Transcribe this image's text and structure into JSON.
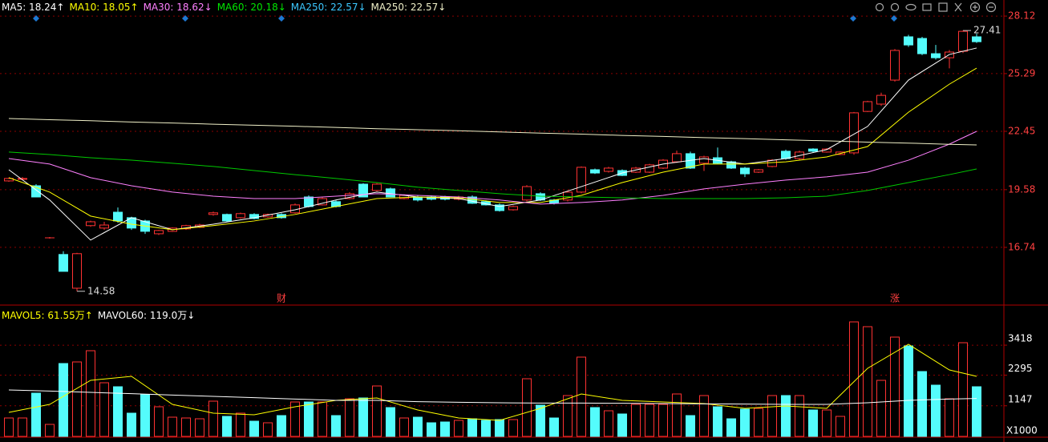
{
  "chart_data": {
    "type": "candlestick",
    "up_color": "#ff3232",
    "down_color": "#54fcfc",
    "grid": true,
    "ylim": [
      13.94,
      28.36
    ],
    "yticks": [
      16.74,
      19.58,
      22.45,
      25.29,
      28.12
    ],
    "legend": [
      {
        "text": "MA5: 18.24↑",
        "color": "#ffffff"
      },
      {
        "text": "MA10: 18.05↑",
        "color": "#ffff00"
      },
      {
        "text": "MA30: 18.62↓",
        "color": "#ff80ff"
      },
      {
        "text": "MA60: 20.18↓",
        "color": "#00e600"
      },
      {
        "text": "MA250: 22.57↓",
        "color": "#3cc8ff"
      },
      {
        "text": "MA250: 22.57↓",
        "color": "#f0f0c8"
      }
    ],
    "candles": [
      [
        20.01,
        20.17,
        19.97,
        20.13
      ],
      [
        20.09,
        20.2,
        20.05,
        20.13
      ],
      [
        19.77,
        19.85,
        19.2,
        19.22
      ],
      [
        17.21,
        17.25,
        17.17,
        17.21
      ],
      [
        16.39,
        16.55,
        15.56,
        15.56
      ],
      [
        14.73,
        16.47,
        14.58,
        16.43
      ],
      [
        17.81,
        18.05,
        17.75,
        18.0
      ],
      [
        17.69,
        18.0,
        17.6,
        17.84
      ],
      [
        18.47,
        18.7,
        17.95,
        18.04
      ],
      [
        18.2,
        18.25,
        17.6,
        17.69
      ],
      [
        18.04,
        18.1,
        17.4,
        17.53
      ],
      [
        17.41,
        17.6,
        17.35,
        17.57
      ],
      [
        17.53,
        17.72,
        17.5,
        17.69
      ],
      [
        17.65,
        17.85,
        17.6,
        17.81
      ],
      [
        17.73,
        17.9,
        17.7,
        17.84
      ],
      [
        18.36,
        18.5,
        18.3,
        18.44
      ],
      [
        18.36,
        18.4,
        18.0,
        18.04
      ],
      [
        18.2,
        18.45,
        18.15,
        18.4
      ],
      [
        18.36,
        18.42,
        18.12,
        18.16
      ],
      [
        18.24,
        18.4,
        18.2,
        18.36
      ],
      [
        18.36,
        18.42,
        18.15,
        18.2
      ],
      [
        18.44,
        18.9,
        18.4,
        18.83
      ],
      [
        19.22,
        19.3,
        18.7,
        18.75
      ],
      [
        18.83,
        19.2,
        18.8,
        19.14
      ],
      [
        18.99,
        19.05,
        18.7,
        18.75
      ],
      [
        19.14,
        19.45,
        19.1,
        19.38
      ],
      [
        19.85,
        19.9,
        19.2,
        19.22
      ],
      [
        19.54,
        19.9,
        19.5,
        19.85
      ],
      [
        19.62,
        19.68,
        19.2,
        19.22
      ],
      [
        19.14,
        19.35,
        19.1,
        19.3
      ],
      [
        19.22,
        19.28,
        19.0,
        19.07
      ],
      [
        19.22,
        19.3,
        19.05,
        19.11
      ],
      [
        19.22,
        19.28,
        19.05,
        19.11
      ],
      [
        19.11,
        19.28,
        19.05,
        19.22
      ],
      [
        19.22,
        19.3,
        18.88,
        18.91
      ],
      [
        18.99,
        19.05,
        18.8,
        18.83
      ],
      [
        18.83,
        18.9,
        18.5,
        18.55
      ],
      [
        18.59,
        18.8,
        18.55,
        18.75
      ],
      [
        19.07,
        19.8,
        19.0,
        19.73
      ],
      [
        19.38,
        19.45,
        19.02,
        19.07
      ],
      [
        19.07,
        19.12,
        18.85,
        18.91
      ],
      [
        19.07,
        19.5,
        19.0,
        19.46
      ],
      [
        19.46,
        20.72,
        19.4,
        20.68
      ],
      [
        20.56,
        20.62,
        20.35,
        20.4
      ],
      [
        20.48,
        20.7,
        20.42,
        20.64
      ],
      [
        20.52,
        20.58,
        20.25,
        20.28
      ],
      [
        20.44,
        20.7,
        20.4,
        20.64
      ],
      [
        20.44,
        20.85,
        20.4,
        20.8
      ],
      [
        20.64,
        21.08,
        20.6,
        21.03
      ],
      [
        20.95,
        21.5,
        20.9,
        21.35
      ],
      [
        21.35,
        21.45,
        20.6,
        20.64
      ],
      [
        20.88,
        21.25,
        20.5,
        21.19
      ],
      [
        21.15,
        21.65,
        20.85,
        20.88
      ],
      [
        20.95,
        21.0,
        20.6,
        20.64
      ],
      [
        20.64,
        20.7,
        20.2,
        20.36
      ],
      [
        20.44,
        20.6,
        20.4,
        20.56
      ],
      [
        20.72,
        21.08,
        20.68,
        21.03
      ],
      [
        21.47,
        21.55,
        21.05,
        21.11
      ],
      [
        21.11,
        21.5,
        21.05,
        21.43
      ],
      [
        21.58,
        21.62,
        21.42,
        21.47
      ],
      [
        21.43,
        21.62,
        21.4,
        21.58
      ],
      [
        21.31,
        21.46,
        21.28,
        21.43
      ],
      [
        21.39,
        23.4,
        21.3,
        23.36
      ],
      [
        23.43,
        23.95,
        23.4,
        23.91
      ],
      [
        23.79,
        24.35,
        23.7,
        24.22
      ],
      [
        24.97,
        26.5,
        24.9,
        26.43
      ],
      [
        27.1,
        27.2,
        26.6,
        26.7
      ],
      [
        27.02,
        27.1,
        26.2,
        26.27
      ],
      [
        26.27,
        26.7,
        25.98,
        26.07
      ],
      [
        26.07,
        26.45,
        25.55,
        26.35
      ],
      [
        26.39,
        27.41,
        26.3,
        27.37
      ],
      [
        27.1,
        27.25,
        26.8,
        26.86
      ]
    ],
    "ma_index": [
      0,
      3,
      6,
      9,
      12,
      15,
      18,
      21,
      24,
      27,
      30,
      33,
      36,
      39,
      42,
      45,
      48,
      51,
      54,
      57,
      60,
      63,
      66,
      69,
      71
    ],
    "series": [
      {
        "color": "#ffffff",
        "values": [
          20.56,
          19.07,
          17.1,
          18.2,
          17.61,
          17.88,
          18.2,
          18.59,
          19.07,
          19.46,
          19.22,
          19.14,
          18.75,
          19.07,
          19.73,
          20.4,
          20.84,
          21.11,
          20.84,
          21.11,
          21.55,
          22.69,
          24.97,
          26.23,
          26.55
        ]
      },
      {
        "color": "#ffff00",
        "values": [
          20.17,
          19.46,
          18.28,
          17.88,
          17.61,
          17.81,
          18.04,
          18.36,
          18.75,
          19.14,
          19.22,
          19.18,
          18.95,
          18.95,
          19.3,
          19.93,
          20.44,
          20.84,
          20.84,
          20.95,
          21.19,
          21.7,
          23.39,
          24.77,
          25.56
        ]
      },
      {
        "color": "#ff80ff",
        "values": [
          21.11,
          20.84,
          20.17,
          19.77,
          19.46,
          19.26,
          19.14,
          19.14,
          19.26,
          19.38,
          19.3,
          19.22,
          19.07,
          18.87,
          18.95,
          19.07,
          19.3,
          19.62,
          19.85,
          20.05,
          20.21,
          20.44,
          21.03,
          21.82,
          22.45
        ]
      },
      {
        "color": "#00c800",
        "values": [
          21.43,
          21.31,
          21.15,
          21.03,
          20.88,
          20.72,
          20.52,
          20.32,
          20.13,
          19.93,
          19.7,
          19.54,
          19.38,
          19.26,
          19.22,
          19.18,
          19.14,
          19.14,
          19.14,
          19.18,
          19.26,
          19.54,
          19.93,
          20.32,
          20.6
        ]
      },
      {
        "color": "#f0f0c8",
        "values": [
          23.08,
          23.02,
          22.97,
          22.91,
          22.86,
          22.8,
          22.75,
          22.7,
          22.64,
          22.58,
          22.53,
          22.48,
          22.42,
          22.36,
          22.31,
          22.25,
          22.2,
          22.14,
          22.09,
          22.03,
          21.98,
          21.92,
          21.87,
          21.81,
          21.78
        ]
      }
    ],
    "annotations": [
      {
        "text": "14.58",
        "at": 5,
        "value": 14.58
      },
      {
        "text": "27.41",
        "at": 70,
        "value": 27.41
      }
    ],
    "events": [
      {
        "text": "财",
        "at": 20
      },
      {
        "text": "涨",
        "at": 65
      }
    ],
    "volume": {
      "ylim": [
        0,
        4800
      ],
      "yticks": [
        1147,
        2295,
        3418
      ],
      "unit_label": "X1000",
      "legend": [
        {
          "text": "MAVOL5: 61.55万↑",
          "color": "#ffff00"
        },
        {
          "text": "MAVOL60: 119.0万↓",
          "color": "#ffffff"
        }
      ],
      "values": [
        690,
        690,
        1620,
        450,
        2730,
        2790,
        3210,
        2010,
        1860,
        870,
        1560,
        1110,
        720,
        690,
        660,
        1320,
        750,
        870,
        570,
        510,
        780,
        1290,
        1290,
        1290,
        780,
        1410,
        1440,
        1890,
        1080,
        690,
        720,
        510,
        540,
        600,
        660,
        600,
        630,
        630,
        2160,
        1170,
        690,
        1530,
        2970,
        1080,
        960,
        840,
        1200,
        1200,
        1200,
        1590,
        780,
        1530,
        1110,
        660,
        1020,
        1050,
        1530,
        1530,
        1530,
        990,
        990,
        750,
        4290,
        4110,
        2100,
        3720,
        3390,
        2430,
        1920,
        1410,
        3510,
        1860
      ],
      "series": [
        {
          "color": "#ffff00",
          "values": [
            900,
            1200,
            2100,
            2250,
            1200,
            870,
            810,
            1110,
            1350,
            1440,
            990,
            690,
            600,
            1050,
            1590,
            1350,
            1290,
            1230,
            1050,
            1140,
            1050,
            2550,
            3450,
            2490,
            2250
          ]
        },
        {
          "color": "#ffffff",
          "values": [
            1740,
            1700,
            1650,
            1600,
            1550,
            1500,
            1450,
            1400,
            1350,
            1350,
            1300,
            1280,
            1260,
            1250,
            1250,
            1240,
            1230,
            1220,
            1210,
            1200,
            1200,
            1260,
            1350,
            1400,
            1420
          ]
        }
      ]
    }
  }
}
